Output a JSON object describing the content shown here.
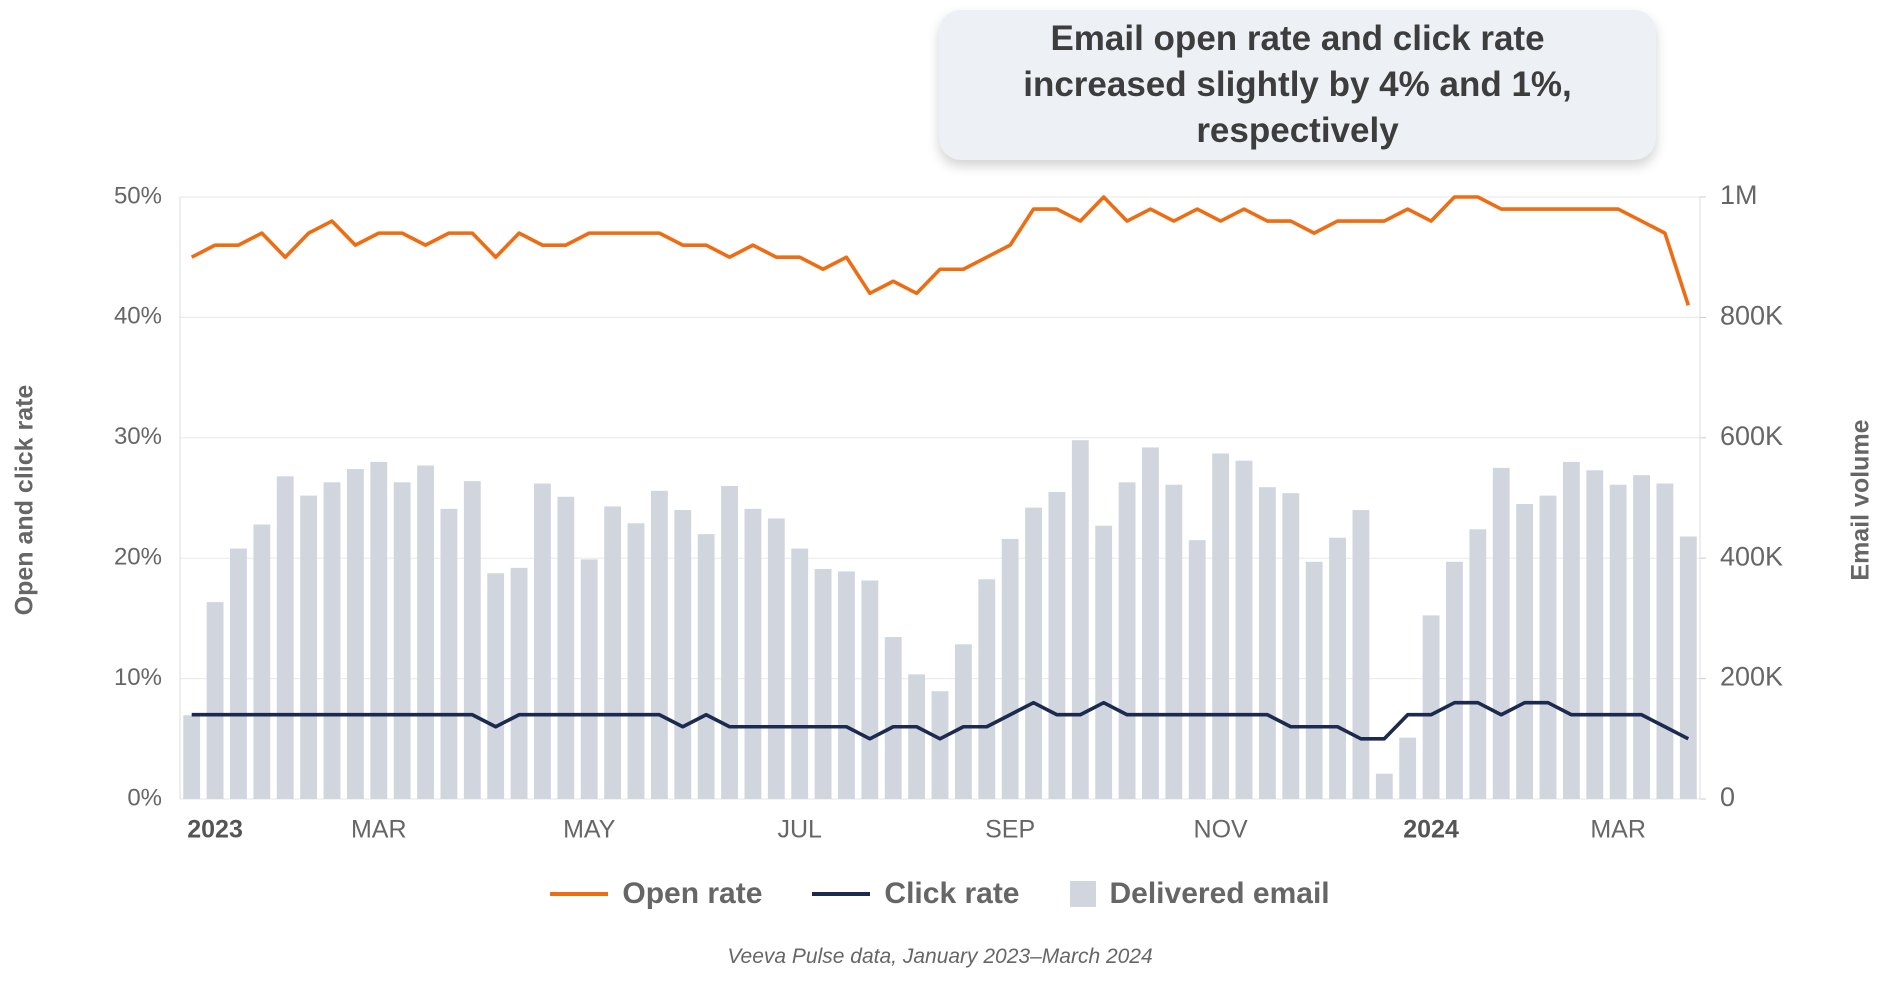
{
  "chart_data": {
    "type": "bar",
    "title": "Email open rate and click rate increased slightly by 4% and 1%, respectively",
    "y_label": "Open and click rate",
    "y2_label": "Email volume",
    "source": "Veeva Pulse data, January 2023–March 2024",
    "categories": [
      null,
      "2023",
      null,
      null,
      null,
      null,
      null,
      null,
      "MAR",
      null,
      null,
      null,
      null,
      null,
      null,
      null,
      null,
      "MAY",
      null,
      null,
      null,
      null,
      null,
      null,
      null,
      null,
      "JUL",
      null,
      null,
      null,
      null,
      null,
      null,
      null,
      null,
      "SEP",
      null,
      null,
      null,
      null,
      null,
      null,
      null,
      null,
      "NOV",
      null,
      null,
      null,
      null,
      null,
      null,
      null,
      null,
      "2024",
      null,
      null,
      null,
      null,
      null,
      null,
      null,
      "MAR",
      null,
      null,
      null
    ],
    "ylim": [
      0,
      50
    ],
    "yticks": [
      {
        "value": 0,
        "label": "0%"
      },
      {
        "value": 10,
        "label": "10%"
      },
      {
        "value": 20,
        "label": "20%"
      },
      {
        "value": 30,
        "label": "30%"
      },
      {
        "value": 40,
        "label": "40%"
      },
      {
        "value": 50,
        "label": "50%"
      }
    ],
    "y2lim": [
      0,
      1000000
    ],
    "y2ticks": [
      0,
      {
        "value": 200000,
        "label": "200K"
      },
      {
        "value": 400000,
        "label": "400K"
      },
      {
        "value": 600000,
        "label": "600K"
      },
      {
        "value": 800000,
        "label": "800K"
      },
      {
        "value": 1000000,
        "label": "1M"
      }
    ],
    "grid": true,
    "series": [
      {
        "name": "Open rate",
        "type": "line",
        "color": "#ee6c12",
        "values": [
          45,
          46,
          46,
          47,
          45,
          47,
          48,
          46,
          47,
          47,
          46,
          47,
          47,
          45,
          47,
          46,
          46,
          47,
          47,
          47,
          47,
          46,
          46,
          45,
          46,
          45,
          45,
          44,
          45,
          42,
          43,
          42,
          44,
          44,
          45,
          46,
          49,
          49,
          48,
          50,
          48,
          49,
          48,
          49,
          48,
          49,
          48,
          48,
          47,
          48,
          48,
          48,
          49,
          48,
          50,
          50,
          49,
          49,
          49,
          49,
          49,
          49,
          48,
          47,
          41
        ]
      },
      {
        "name": "Click rate",
        "type": "line",
        "color": "#1b2a4e",
        "values": [
          7,
          7,
          7,
          7,
          7,
          7,
          7,
          7,
          7,
          7,
          7,
          7,
          7,
          6,
          7,
          7,
          7,
          7,
          7,
          7,
          7,
          6,
          7,
          6,
          6,
          6,
          6,
          6,
          6,
          5,
          6,
          6,
          5,
          6,
          6,
          7,
          8,
          7,
          7,
          8,
          7,
          7,
          7,
          7,
          7,
          7,
          7,
          6,
          6,
          6,
          5,
          5,
          7,
          7,
          8,
          8,
          7,
          8,
          8,
          7,
          7,
          7,
          7,
          6,
          5
        ]
      },
      {
        "name": "Delivered email",
        "type": "bar",
        "axis": "y2",
        "color": "#d0d5de",
        "values": [
          139000,
          327000,
          416000,
          456000,
          536000,
          504000,
          526000,
          548000,
          560000,
          526000,
          554000,
          482000,
          528000,
          375000,
          384000,
          524000,
          502000,
          398000,
          486000,
          458000,
          512000,
          480000,
          440000,
          520000,
          482000,
          466000,
          416000,
          382000,
          378000,
          363000,
          269000,
          207000,
          179000,
          257000,
          365000,
          432000,
          484000,
          510000,
          596000,
          454000,
          526000,
          584000,
          522000,
          430000,
          574000,
          562000,
          518000,
          508000,
          394000,
          434000,
          480000,
          42000,
          102000,
          305000,
          394000,
          448000,
          550000,
          490000,
          504000,
          560000,
          546000,
          522000,
          538000,
          524000,
          436000
        ]
      }
    ]
  }
}
